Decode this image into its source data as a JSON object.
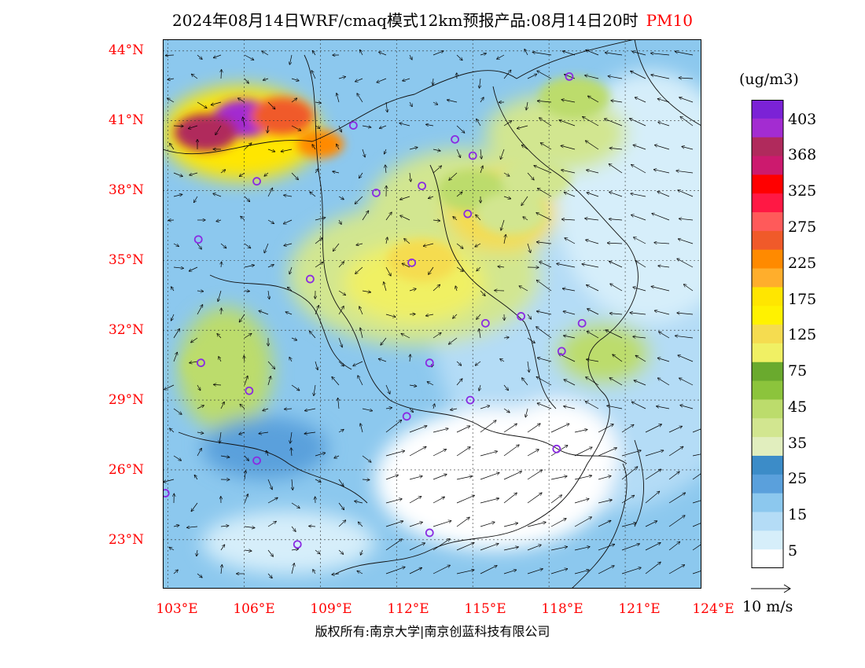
{
  "title": {
    "main": "2024年08月14日WRF/cmaq模式12km预报产品:08月14日20时",
    "product": "PM10"
  },
  "axes": {
    "lat_labels": [
      "44°N",
      "41°N",
      "38°N",
      "35°N",
      "32°N",
      "29°N",
      "26°N",
      "23°N"
    ],
    "lon_labels": [
      "103°E",
      "106°E",
      "109°E",
      "112°E",
      "115°E",
      "118°E",
      "121°E",
      "124°E"
    ],
    "lat_range": [
      21,
      44.5
    ],
    "lon_range": [
      103,
      124
    ]
  },
  "legend": {
    "unit": "(ug/m3)",
    "labels": [
      "403",
      "368",
      "325",
      "275",
      "225",
      "175",
      "125",
      "75",
      "45",
      "35",
      "25",
      "15",
      "5"
    ],
    "colors": [
      "#7b22d6",
      "#a32cd1",
      "#b02a5c",
      "#cc1a6e",
      "#ff0000",
      "#ff1844",
      "#ff5a5a",
      "#f05a2a",
      "#ff8a00",
      "#ffae2c",
      "#ffe600",
      "#fff200",
      "#f5dc50",
      "#f0f064",
      "#6aaa2e",
      "#8cc43c",
      "#bcdc6c",
      "#d2e690",
      "#e1eebe",
      "#3c8cc8",
      "#5aa0dc",
      "#8cc8ee",
      "#b4dcf6",
      "#d6eefa",
      "#ffffff"
    ]
  },
  "wind": {
    "reference_label": "10 m/s"
  },
  "copyright": "版权所有:南京大学|南京创蓝科技有限公司",
  "cities": [
    {
      "lon": 118.8,
      "lat": 42.9
    },
    {
      "lon": 110.3,
      "lat": 40.8
    },
    {
      "lon": 114.3,
      "lat": 40.2
    },
    {
      "lon": 115.0,
      "lat": 39.5
    },
    {
      "lon": 106.5,
      "lat": 38.4
    },
    {
      "lon": 111.2,
      "lat": 37.9
    },
    {
      "lon": 113.0,
      "lat": 38.2
    },
    {
      "lon": 114.8,
      "lat": 37.0
    },
    {
      "lon": 104.2,
      "lat": 35.9
    },
    {
      "lon": 112.6,
      "lat": 34.9
    },
    {
      "lon": 108.6,
      "lat": 34.2
    },
    {
      "lon": 115.5,
      "lat": 32.3
    },
    {
      "lon": 116.9,
      "lat": 32.6
    },
    {
      "lon": 119.3,
      "lat": 32.3
    },
    {
      "lon": 118.5,
      "lat": 31.1
    },
    {
      "lon": 104.3,
      "lat": 30.6
    },
    {
      "lon": 113.3,
      "lat": 30.6
    },
    {
      "lon": 106.2,
      "lat": 29.4
    },
    {
      "lon": 114.9,
      "lat": 29.0
    },
    {
      "lon": 112.4,
      "lat": 28.3
    },
    {
      "lon": 106.5,
      "lat": 26.4
    },
    {
      "lon": 118.3,
      "lat": 26.9
    },
    {
      "lon": 102.9,
      "lat": 25.0
    },
    {
      "lon": 108.1,
      "lat": 22.8
    },
    {
      "lon": 113.3,
      "lat": 23.3
    }
  ],
  "pollution_hotspots": [
    {
      "lon": 106.0,
      "lat": 41.1,
      "level": 403,
      "color": "#a32cd1"
    },
    {
      "lon": 104.5,
      "lat": 40.5,
      "level": 368,
      "color": "#b02a5c"
    },
    {
      "lon": 107.5,
      "lat": 41.2,
      "level": 225,
      "color": "#f05a2a"
    },
    {
      "lon": 109.0,
      "lat": 40.0,
      "level": 175,
      "color": "#ff8a00"
    },
    {
      "lon": 113.0,
      "lat": 35.0,
      "level": 75,
      "color": "#f5dc50"
    },
    {
      "lon": 115.0,
      "lat": 38.0,
      "level": 45,
      "color": "#bcdc6c"
    },
    {
      "lon": 116.5,
      "lat": 37.0,
      "level": 35,
      "color": "#d2e690"
    },
    {
      "lon": 105.0,
      "lat": 30.5,
      "level": 35,
      "color": "#bcdc6c"
    },
    {
      "lon": 117.5,
      "lat": 38.5,
      "level": 45,
      "color": "#d2e690"
    },
    {
      "lon": 119.0,
      "lat": 42.0,
      "level": 45,
      "color": "#bcdc6c"
    }
  ]
}
